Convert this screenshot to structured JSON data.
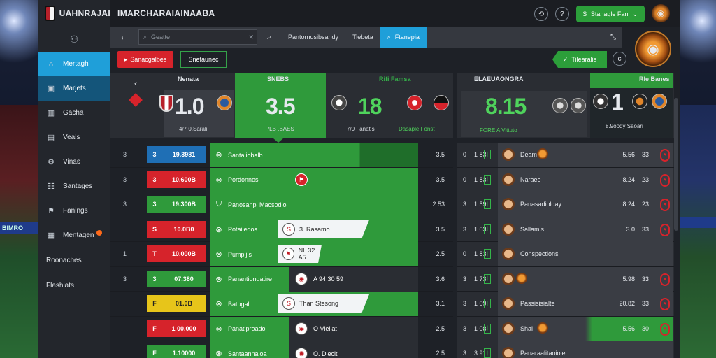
{
  "app": {
    "logo_text": "UAHNRAJAI",
    "top_title": "IMARCHARAIAINAABA"
  },
  "header": {
    "green_pill_label": "Stanagle Fan",
    "tools": [
      "sync-icon",
      "help-icon"
    ]
  },
  "sidebar": {
    "items": [
      {
        "label": "Mertagh",
        "icon": "⌂",
        "state": "active"
      },
      {
        "label": "Marjets",
        "icon": "▣",
        "state": "active2"
      },
      {
        "label": "Gacha",
        "icon": "▥",
        "state": "normal"
      },
      {
        "label": "Veals",
        "icon": "▤",
        "state": "normal"
      },
      {
        "label": "Vinas",
        "icon": "⚙",
        "state": "normal"
      },
      {
        "label": "Santages",
        "icon": "☷",
        "state": "normal"
      },
      {
        "label": "Fanings",
        "icon": "⚑",
        "state": "normal"
      },
      {
        "label": "Mentagen",
        "icon": "▦",
        "state": "normal",
        "badge": true
      }
    ],
    "plain_items": [
      "Roonaches",
      "Flashiats"
    ]
  },
  "search": {
    "placeholder": "Geatte",
    "tabs": [
      {
        "label": "Pantornosibsandy",
        "active": false
      },
      {
        "label": "Tiebeta",
        "active": false
      },
      {
        "label": "Ftanepia",
        "active": true
      }
    ]
  },
  "actions": {
    "red_button": "Sanacgalbes",
    "outline_button": "Snefaunec",
    "green_button": "Tilearalis"
  },
  "scoreboard_left": {
    "col_header_1": "Nenata",
    "col_header_2": "SNEBS",
    "col_header_3": "Rifi Famsa",
    "left_number": "0",
    "score_1": "1.0",
    "score_1_sub": "4/7 0.Sarali",
    "score_2": "3.5",
    "score_2_sub": "T/LB .BAES",
    "score_3": "18",
    "score_3_sub": "7/0 Fanatis",
    "score_4_sub": "Dasaple Fonst"
  },
  "scoreboard_right": {
    "header": "ELAEUAONGRA",
    "header_right": "Rle Banes",
    "score": "8.15",
    "score_sub": "FORE A Vittuto",
    "score_right": "1",
    "score_right_sub": "8.9oody Saoari"
  },
  "rows_left": [
    {
      "num": "3",
      "k": "3",
      "odds": "19.3981",
      "color": "#1f6fb5",
      "team": "Santaliobalb",
      "white": "",
      "val": "3.5",
      "n": "37",
      "mode": "plain"
    },
    {
      "num": "3",
      "k": "3",
      "odds": "10.600B",
      "color": "#d6232b",
      "team": "Pordonnos",
      "white": "",
      "val": "3.5",
      "n": "30",
      "mode": "ball-red"
    },
    {
      "num": "3",
      "k": "3",
      "odds": "19.300B",
      "color": "#2f9a3b",
      "team": "Panosanpl Macsodio",
      "white": "",
      "val": "2.53",
      "n": "30",
      "mode": "plain"
    },
    {
      "num": "",
      "k": "S",
      "odds": "10.0B0",
      "color": "#d6232b",
      "team": "Potailedoa",
      "white": "3.  Rasamo",
      "val": "3.5",
      "n": "30",
      "mode": "white-long"
    },
    {
      "num": "1",
      "k": "T",
      "odds": "10.000B",
      "color": "#d6232b",
      "team": "Pumpijis",
      "white": "NL 32 A5",
      "val": "2.5",
      "n": "28",
      "mode": "white-short"
    },
    {
      "num": "3",
      "k": "3",
      "odds": "07.380",
      "color": "#2f9a3b",
      "team": "Panantiondatire",
      "white": "A 94 30 59",
      "val": "3.6",
      "n": "20",
      "mode": "dark"
    },
    {
      "num": "",
      "k": "F",
      "odds": "01.0B",
      "color": "#e7c51a",
      "team": "Batugalt",
      "white": "Than Stesong",
      "val": "3.1",
      "n": "30",
      "mode": "white-long"
    },
    {
      "num": "",
      "k": "F",
      "odds": "1 00.000",
      "color": "#d6232b",
      "team": "Panatiproadoi",
      "white": "O Vieilat",
      "val": "2.5",
      "n": "36",
      "mode": "dark"
    },
    {
      "num": "",
      "k": "F",
      "odds": "1.10000",
      "color": "#2f9a3b",
      "team": "Santaannaloa",
      "white": "O. Dlecit",
      "val": "2.5",
      "n": "30",
      "mode": "dark"
    }
  ],
  "rows_right": [
    {
      "n1": "0",
      "n2": "1 83",
      "name": "Deam",
      "val": "5.56",
      "bad": "33",
      "green": false
    },
    {
      "n1": "0",
      "n2": "1 83",
      "name": "Naraee",
      "val": "8.24",
      "bad": "23",
      "green": false
    },
    {
      "n1": "3",
      "n2": "1 59",
      "name": "Panasadiolday",
      "val": "8.24",
      "bad": "23",
      "green": false
    },
    {
      "n1": "3",
      "n2": "1 03",
      "name": "Sallamis",
      "val": "3.0",
      "bad": "33",
      "green": false
    },
    {
      "n1": "0",
      "n2": "1 83",
      "name": "Conspections",
      "val": "",
      "bad": "",
      "green": false
    },
    {
      "n1": "3",
      "n2": "1 73",
      "name": "",
      "val": "5.98",
      "bad": "33",
      "green": false
    },
    {
      "n1": "3",
      "n2": "1 09",
      "name": "Passisisialte",
      "val": "20.82",
      "bad": "33",
      "green": false
    },
    {
      "n1": "3",
      "n2": "1 08",
      "name": "Shai",
      "val": "5.56",
      "bad": "30",
      "green": true
    },
    {
      "n1": "3",
      "n2": "3 91",
      "name": "Panaraalitaoiole",
      "val": "",
      "bad": "",
      "green": false
    }
  ]
}
